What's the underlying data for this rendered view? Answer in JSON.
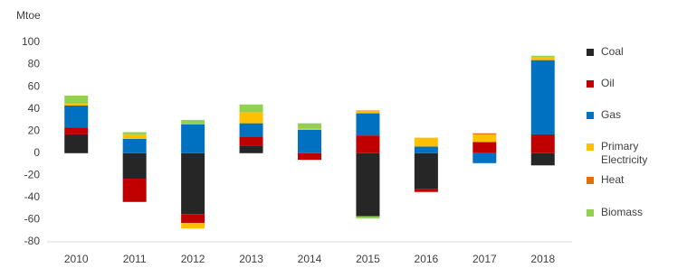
{
  "chart_data": {
    "type": "stacked_bar",
    "y_axis_label": "Mtoe",
    "categories": [
      "2010",
      "2011",
      "2012",
      "2013",
      "2014",
      "2015",
      "2016",
      "2017",
      "2018"
    ],
    "series": [
      {
        "name": "Coal",
        "color": "#262626",
        "values": [
          17,
          -23,
          -55,
          7,
          0,
          -57,
          -32,
          0,
          -11
        ]
      },
      {
        "name": "Oil",
        "color": "#c00000",
        "values": [
          6,
          -21,
          -8,
          8,
          -6,
          16,
          -3,
          10,
          17
        ]
      },
      {
        "name": "Gas",
        "color": "#0070c0",
        "values": [
          20,
          13,
          26,
          12,
          21,
          20,
          6,
          -9,
          67
        ]
      },
      {
        "name": "Primary Electricity",
        "color": "#ffc000",
        "values": [
          2,
          4,
          -5,
          10,
          1,
          2,
          8,
          7,
          3
        ]
      },
      {
        "name": "Heat",
        "color": "#e46c0a",
        "values": [
          0,
          0,
          0,
          0,
          0,
          0.5,
          0,
          1,
          0
        ]
      },
      {
        "name": "Biomass",
        "color": "#92d050",
        "values": [
          7,
          2,
          4,
          7,
          5,
          -2,
          0,
          0,
          1
        ]
      }
    ],
    "ylim": [
      -80,
      100
    ],
    "yticks": [
      -80,
      -60,
      -40,
      -20,
      0,
      20,
      40,
      60,
      80,
      100
    ],
    "grid": false,
    "legend": "right"
  }
}
